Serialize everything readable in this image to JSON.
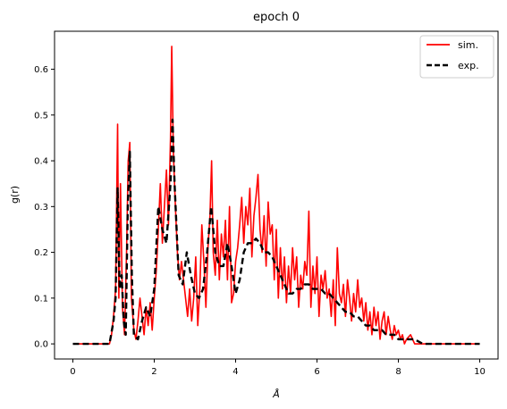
{
  "chart_data": {
    "type": "line",
    "title": "epoch 0",
    "xlabel": "Å",
    "ylabel": "g(r)",
    "xlim": [
      -0.45,
      10.45
    ],
    "ylim": [
      -0.033,
      0.683
    ],
    "xticks": [
      0,
      2,
      4,
      6,
      8,
      10
    ],
    "yticks": [
      0.0,
      0.1,
      0.2,
      0.3,
      0.4,
      0.5,
      0.6
    ],
    "ytick_labels": [
      "0.0",
      "0.1",
      "0.2",
      "0.3",
      "0.4",
      "0.5",
      "0.6"
    ],
    "grid": false,
    "legend": "top-right",
    "series": [
      {
        "name": "sim.",
        "color": "#ff0000",
        "style": "solid",
        "points": [
          [
            0.0,
            0.0
          ],
          [
            0.9,
            0.0
          ],
          [
            0.95,
            0.02
          ],
          [
            1.0,
            0.06
          ],
          [
            1.05,
            0.12
          ],
          [
            1.1,
            0.48
          ],
          [
            1.13,
            0.1
          ],
          [
            1.17,
            0.35
          ],
          [
            1.22,
            0.08
          ],
          [
            1.27,
            0.02
          ],
          [
            1.32,
            0.2
          ],
          [
            1.36,
            0.4
          ],
          [
            1.4,
            0.44
          ],
          [
            1.44,
            0.1
          ],
          [
            1.5,
            0.03
          ],
          [
            1.55,
            0.01
          ],
          [
            1.6,
            0.05
          ],
          [
            1.65,
            0.1
          ],
          [
            1.7,
            0.06
          ],
          [
            1.75,
            0.02
          ],
          [
            1.8,
            0.08
          ],
          [
            1.85,
            0.04
          ],
          [
            1.9,
            0.09
          ],
          [
            1.95,
            0.03
          ],
          [
            2.0,
            0.1
          ],
          [
            2.05,
            0.16
          ],
          [
            2.1,
            0.25
          ],
          [
            2.15,
            0.35
          ],
          [
            2.2,
            0.22
          ],
          [
            2.25,
            0.3
          ],
          [
            2.3,
            0.38
          ],
          [
            2.35,
            0.26
          ],
          [
            2.4,
            0.45
          ],
          [
            2.43,
            0.65
          ],
          [
            2.47,
            0.42
          ],
          [
            2.52,
            0.3
          ],
          [
            2.57,
            0.2
          ],
          [
            2.62,
            0.14
          ],
          [
            2.67,
            0.18
          ],
          [
            2.72,
            0.14
          ],
          [
            2.77,
            0.1
          ],
          [
            2.82,
            0.06
          ],
          [
            2.87,
            0.12
          ],
          [
            2.92,
            0.05
          ],
          [
            2.97,
            0.1
          ],
          [
            3.02,
            0.19
          ],
          [
            3.07,
            0.04
          ],
          [
            3.12,
            0.12
          ],
          [
            3.17,
            0.26
          ],
          [
            3.22,
            0.18
          ],
          [
            3.27,
            0.08
          ],
          [
            3.32,
            0.21
          ],
          [
            3.37,
            0.28
          ],
          [
            3.41,
            0.4
          ],
          [
            3.45,
            0.2
          ],
          [
            3.5,
            0.15
          ],
          [
            3.55,
            0.27
          ],
          [
            3.6,
            0.14
          ],
          [
            3.65,
            0.24
          ],
          [
            3.7,
            0.19
          ],
          [
            3.75,
            0.27
          ],
          [
            3.8,
            0.14
          ],
          [
            3.85,
            0.3
          ],
          [
            3.9,
            0.09
          ],
          [
            3.95,
            0.11
          ],
          [
            4.0,
            0.18
          ],
          [
            4.05,
            0.21
          ],
          [
            4.1,
            0.26
          ],
          [
            4.15,
            0.32
          ],
          [
            4.2,
            0.22
          ],
          [
            4.25,
            0.3
          ],
          [
            4.3,
            0.26
          ],
          [
            4.35,
            0.34
          ],
          [
            4.4,
            0.19
          ],
          [
            4.45,
            0.28
          ],
          [
            4.5,
            0.32
          ],
          [
            4.55,
            0.37
          ],
          [
            4.6,
            0.25
          ],
          [
            4.65,
            0.2
          ],
          [
            4.7,
            0.28
          ],
          [
            4.75,
            0.17
          ],
          [
            4.8,
            0.31
          ],
          [
            4.85,
            0.24
          ],
          [
            4.9,
            0.26
          ],
          [
            4.95,
            0.14
          ],
          [
            5.0,
            0.25
          ],
          [
            5.05,
            0.1
          ],
          [
            5.1,
            0.21
          ],
          [
            5.15,
            0.12
          ],
          [
            5.2,
            0.19
          ],
          [
            5.25,
            0.09
          ],
          [
            5.3,
            0.17
          ],
          [
            5.35,
            0.11
          ],
          [
            5.4,
            0.21
          ],
          [
            5.45,
            0.14
          ],
          [
            5.5,
            0.19
          ],
          [
            5.55,
            0.08
          ],
          [
            5.6,
            0.15
          ],
          [
            5.65,
            0.12
          ],
          [
            5.7,
            0.18
          ],
          [
            5.75,
            0.15
          ],
          [
            5.8,
            0.29
          ],
          [
            5.85,
            0.08
          ],
          [
            5.9,
            0.17
          ],
          [
            5.95,
            0.11
          ],
          [
            6.0,
            0.19
          ],
          [
            6.05,
            0.06
          ],
          [
            6.1,
            0.15
          ],
          [
            6.15,
            0.12
          ],
          [
            6.2,
            0.16
          ],
          [
            6.25,
            0.1
          ],
          [
            6.3,
            0.12
          ],
          [
            6.35,
            0.06
          ],
          [
            6.4,
            0.14
          ],
          [
            6.45,
            0.04
          ],
          [
            6.5,
            0.21
          ],
          [
            6.55,
            0.11
          ],
          [
            6.6,
            0.09
          ],
          [
            6.65,
            0.13
          ],
          [
            6.7,
            0.06
          ],
          [
            6.75,
            0.14
          ],
          [
            6.8,
            0.1
          ],
          [
            6.85,
            0.05
          ],
          [
            6.9,
            0.11
          ],
          [
            6.95,
            0.07
          ],
          [
            7.0,
            0.14
          ],
          [
            7.05,
            0.08
          ],
          [
            7.1,
            0.1
          ],
          [
            7.15,
            0.05
          ],
          [
            7.2,
            0.09
          ],
          [
            7.25,
            0.03
          ],
          [
            7.3,
            0.07
          ],
          [
            7.35,
            0.02
          ],
          [
            7.4,
            0.08
          ],
          [
            7.45,
            0.04
          ],
          [
            7.5,
            0.07
          ],
          [
            7.55,
            0.01
          ],
          [
            7.6,
            0.05
          ],
          [
            7.65,
            0.07
          ],
          [
            7.7,
            0.02
          ],
          [
            7.75,
            0.06
          ],
          [
            7.8,
            0.03
          ],
          [
            7.85,
            0.01
          ],
          [
            7.9,
            0.04
          ],
          [
            7.95,
            0.02
          ],
          [
            8.0,
            0.03
          ],
          [
            8.05,
            0.01
          ],
          [
            8.1,
            0.02
          ],
          [
            8.15,
            0.0
          ],
          [
            8.2,
            0.01
          ],
          [
            8.3,
            0.02
          ],
          [
            8.4,
            0.0
          ],
          [
            8.5,
            0.0
          ],
          [
            10.0,
            0.0
          ]
        ]
      },
      {
        "name": "exp.",
        "color": "#000000",
        "style": "dashed",
        "points": [
          [
            0.0,
            0.0
          ],
          [
            0.9,
            0.0
          ],
          [
            1.0,
            0.05
          ],
          [
            1.05,
            0.1
          ],
          [
            1.1,
            0.34
          ],
          [
            1.15,
            0.12
          ],
          [
            1.2,
            0.15
          ],
          [
            1.25,
            0.05
          ],
          [
            1.3,
            0.02
          ],
          [
            1.35,
            0.3
          ],
          [
            1.4,
            0.42
          ],
          [
            1.45,
            0.15
          ],
          [
            1.5,
            0.02
          ],
          [
            1.6,
            0.01
          ],
          [
            1.7,
            0.05
          ],
          [
            1.8,
            0.08
          ],
          [
            1.9,
            0.06
          ],
          [
            2.0,
            0.12
          ],
          [
            2.1,
            0.3
          ],
          [
            2.2,
            0.25
          ],
          [
            2.3,
            0.22
          ],
          [
            2.4,
            0.35
          ],
          [
            2.45,
            0.49
          ],
          [
            2.5,
            0.35
          ],
          [
            2.6,
            0.15
          ],
          [
            2.7,
            0.13
          ],
          [
            2.8,
            0.2
          ],
          [
            2.9,
            0.15
          ],
          [
            3.0,
            0.11
          ],
          [
            3.1,
            0.1
          ],
          [
            3.2,
            0.12
          ],
          [
            3.3,
            0.2
          ],
          [
            3.4,
            0.3
          ],
          [
            3.5,
            0.2
          ],
          [
            3.6,
            0.17
          ],
          [
            3.7,
            0.17
          ],
          [
            3.8,
            0.22
          ],
          [
            3.9,
            0.17
          ],
          [
            4.0,
            0.11
          ],
          [
            4.1,
            0.14
          ],
          [
            4.2,
            0.2
          ],
          [
            4.3,
            0.22
          ],
          [
            4.4,
            0.22
          ],
          [
            4.5,
            0.23
          ],
          [
            4.6,
            0.22
          ],
          [
            4.7,
            0.2
          ],
          [
            4.8,
            0.2
          ],
          [
            4.9,
            0.19
          ],
          [
            5.0,
            0.17
          ],
          [
            5.1,
            0.15
          ],
          [
            5.2,
            0.13
          ],
          [
            5.3,
            0.11
          ],
          [
            5.4,
            0.11
          ],
          [
            5.5,
            0.12
          ],
          [
            5.6,
            0.12
          ],
          [
            5.7,
            0.13
          ],
          [
            5.8,
            0.13
          ],
          [
            5.9,
            0.12
          ],
          [
            6.0,
            0.12
          ],
          [
            6.1,
            0.12
          ],
          [
            6.2,
            0.11
          ],
          [
            6.3,
            0.11
          ],
          [
            6.4,
            0.1
          ],
          [
            6.5,
            0.09
          ],
          [
            6.6,
            0.08
          ],
          [
            6.7,
            0.07
          ],
          [
            6.8,
            0.07
          ],
          [
            6.9,
            0.06
          ],
          [
            7.0,
            0.06
          ],
          [
            7.1,
            0.05
          ],
          [
            7.2,
            0.04
          ],
          [
            7.3,
            0.04
          ],
          [
            7.4,
            0.03
          ],
          [
            7.5,
            0.03
          ],
          [
            7.6,
            0.03
          ],
          [
            7.7,
            0.02
          ],
          [
            7.8,
            0.02
          ],
          [
            7.9,
            0.02
          ],
          [
            8.0,
            0.01
          ],
          [
            8.2,
            0.01
          ],
          [
            8.4,
            0.01
          ],
          [
            8.6,
            0.0
          ],
          [
            10.0,
            0.0
          ]
        ]
      }
    ]
  }
}
